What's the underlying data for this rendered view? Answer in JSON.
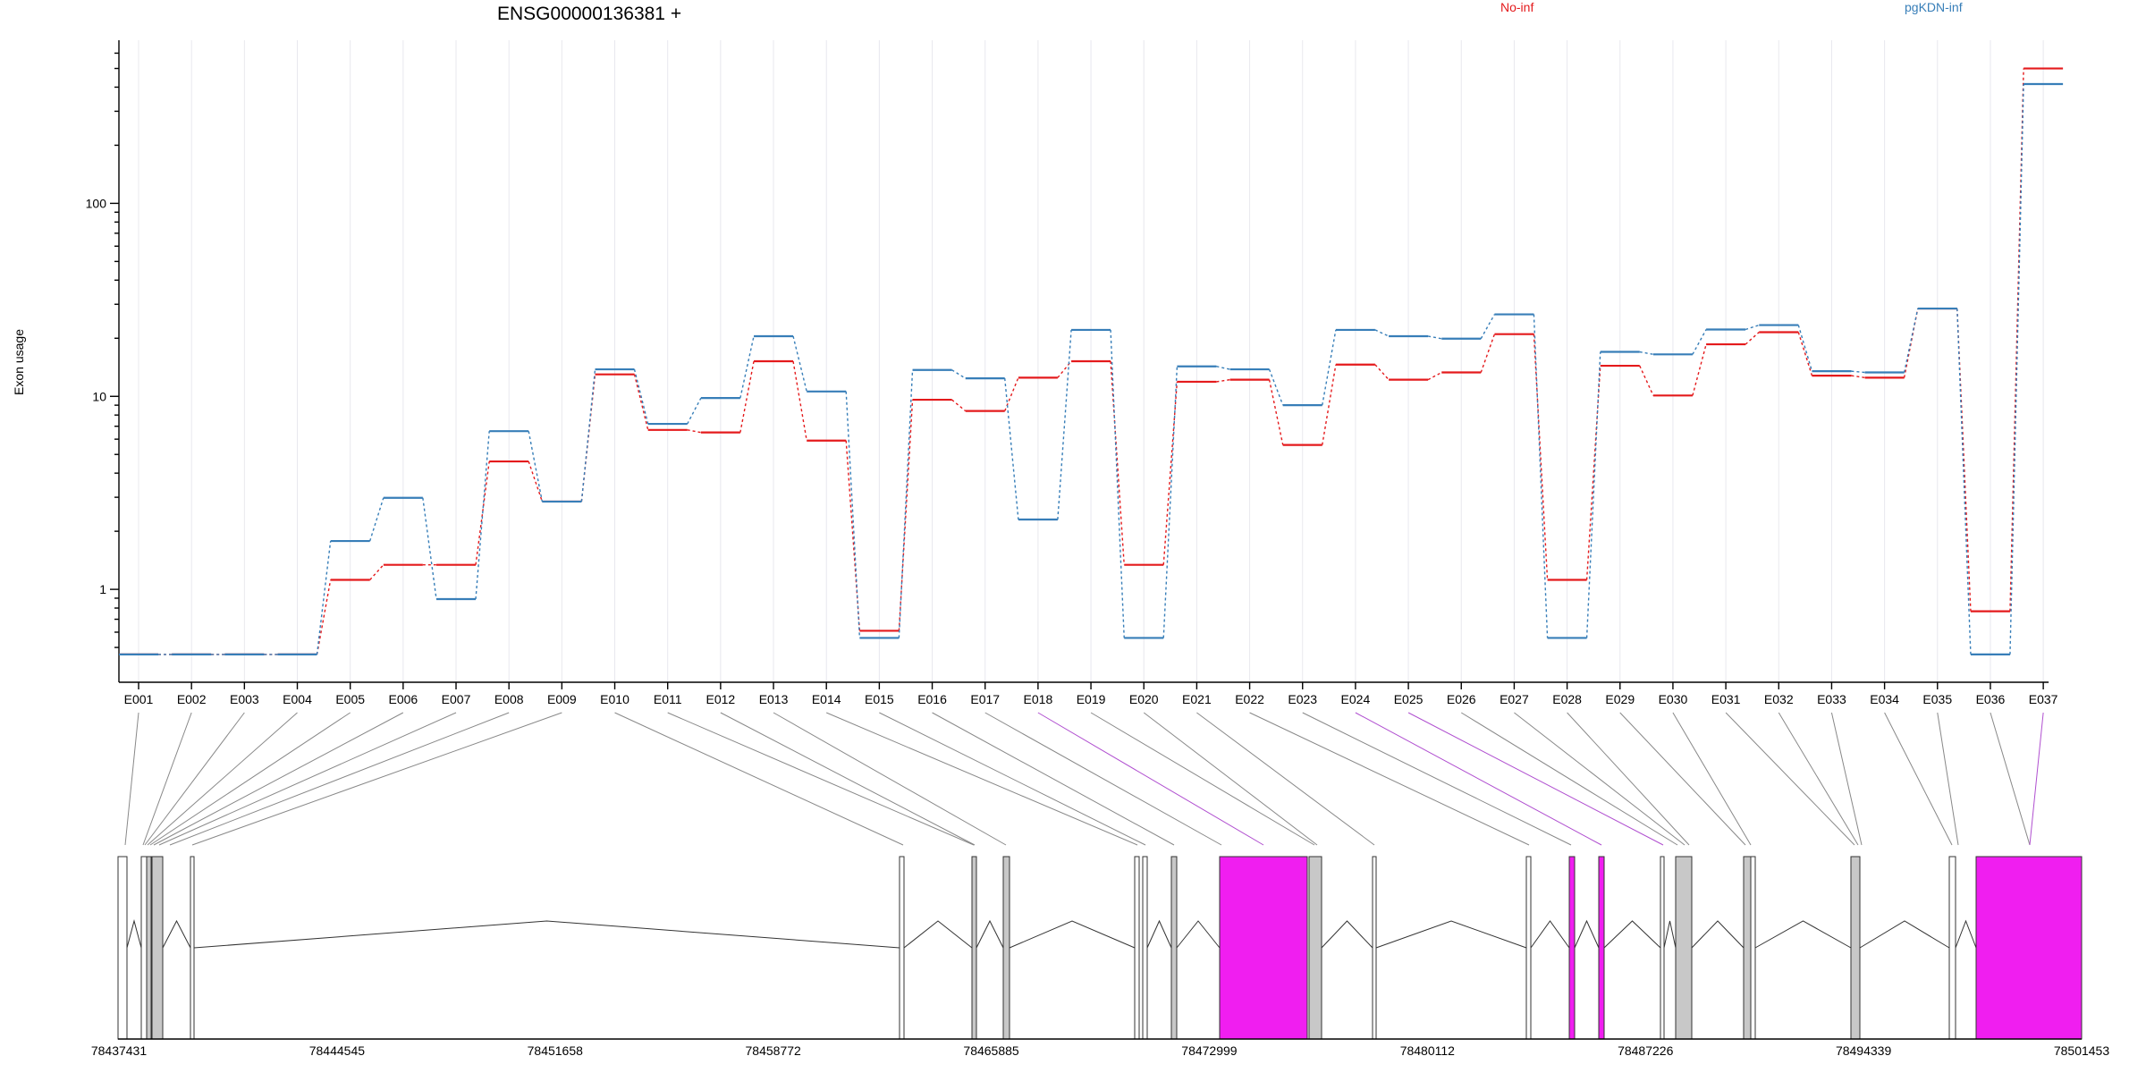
{
  "chart_data": {
    "type": "line",
    "title": "ENSG00000136381 +",
    "ylabel": "Exon usage",
    "yscale": "log",
    "yticks": [
      "1",
      "10",
      "100"
    ],
    "categories": [
      "E001",
      "E002",
      "E003",
      "E004",
      "E005",
      "E006",
      "E007",
      "E008",
      "E009",
      "E010",
      "E011",
      "E012",
      "E013",
      "E014",
      "E015",
      "E016",
      "E017",
      "E018",
      "E019",
      "E020",
      "E021",
      "E022",
      "E023",
      "E024",
      "E025",
      "E026",
      "E027",
      "E028",
      "E029",
      "E030",
      "E031",
      "E032",
      "E033",
      "E034",
      "E035",
      "E036",
      "E037"
    ],
    "series": [
      {
        "name": "No-inf",
        "color": "#e41a1c",
        "values": [
          0.46,
          0.46,
          0.46,
          0.46,
          1.12,
          1.34,
          1.34,
          4.6,
          2.85,
          13,
          6.7,
          6.5,
          15.2,
          5.9,
          0.61,
          9.6,
          8.4,
          12.5,
          15.2,
          1.34,
          11.9,
          12.2,
          5.6,
          14.6,
          12.2,
          13.3,
          21,
          1.12,
          14.4,
          10.1,
          18.6,
          21.5,
          12.8,
          12.5,
          28.5,
          0.77,
          500
        ]
      },
      {
        "name": "pgKDN-inf",
        "color": "#377eb8",
        "values": [
          0.46,
          0.46,
          0.46,
          0.46,
          1.78,
          2.98,
          0.89,
          6.6,
          2.85,
          13.8,
          7.2,
          9.8,
          20.5,
          10.6,
          0.56,
          13.7,
          12.4,
          2.3,
          22.1,
          0.56,
          14.3,
          13.8,
          9,
          22.1,
          20.5,
          19.9,
          26.6,
          0.56,
          17,
          16.5,
          22.2,
          23.4,
          13.5,
          13.3,
          28.5,
          0.46,
          415
        ]
      }
    ],
    "gene_model": {
      "coordinate_labels": [
        "78437431",
        "78444545",
        "78451658",
        "78458772",
        "78465885",
        "78472999",
        "78480112",
        "78487226",
        "78494339",
        "78501453"
      ],
      "highlight_color": "#f01ef0",
      "exon_fill_color": "#c8c8c8",
      "highlighted_exons": [
        "E018",
        "E024",
        "E025",
        "E037"
      ]
    },
    "grid": "vertical",
    "legend_position": "top-right"
  }
}
